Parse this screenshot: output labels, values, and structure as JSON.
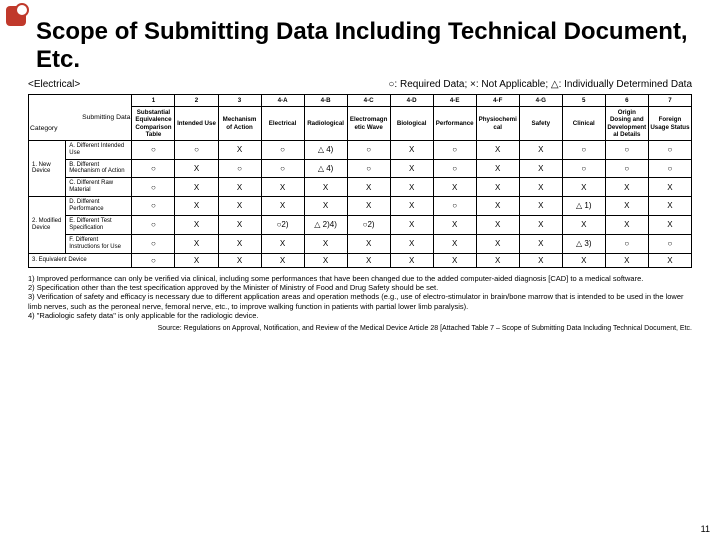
{
  "title": "Scope of Submitting Data Including Technical Document, Etc.",
  "subtitle_left": "<Electrical>",
  "legend": "○: Required Data; ×: Not Applicable; △: Individually Determined Data",
  "header_top": [
    "1",
    "2",
    "3",
    "4-A",
    "4-B",
    "4-C",
    "4-D",
    "4-E",
    "4-F",
    "4-G",
    "5",
    "6",
    "7"
  ],
  "header_sub_label": "Submitting Data",
  "category_label": "Category",
  "header_bottom": [
    "Substantial Equivalence Comparison Table",
    "Intended Use",
    "Mechanism of Action",
    "Electrical",
    "Radiological",
    "Electromagnetic Wave",
    "Biological",
    "Performance",
    "Physiochemical",
    "Safety",
    "Clinical",
    "Origin Dosing and Developmental Details",
    "Foreign Usage Status"
  ],
  "row_groups": [
    {
      "label": "1. New Device",
      "rows": [
        {
          "label": "A. Different Intended Use",
          "cells": [
            "○",
            "○",
            "X",
            "○",
            "△ 4)",
            "○",
            "X",
            "○",
            "X",
            "X",
            "○",
            "○",
            "○"
          ]
        },
        {
          "label": "B. Different Mechanism of Action",
          "cells": [
            "○",
            "X",
            "○",
            "○",
            "△ 4)",
            "○",
            "X",
            "○",
            "X",
            "X",
            "○",
            "○",
            "○"
          ]
        },
        {
          "label": "C. Different Raw Material",
          "cells": [
            "○",
            "X",
            "X",
            "X",
            "X",
            "X",
            "X",
            "X",
            "X",
            "X",
            "X",
            "X",
            "X"
          ]
        }
      ]
    },
    {
      "label": "2. Modified Device",
      "rows": [
        {
          "label": "D. Different Performance",
          "cells": [
            "○",
            "X",
            "X",
            "X",
            "X",
            "X",
            "X",
            "○",
            "X",
            "X",
            "△ 1)",
            "X",
            "X"
          ]
        },
        {
          "label": "E. Different Test Specification",
          "cells": [
            "○",
            "X",
            "X",
            "○2)",
            "△ 2)4)",
            "○2)",
            "X",
            "X",
            "X",
            "X",
            "X",
            "X",
            "X"
          ]
        },
        {
          "label": "F. Different Instructions for Use",
          "cells": [
            "○",
            "X",
            "X",
            "X",
            "X",
            "X",
            "X",
            "X",
            "X",
            "X",
            "△ 3)",
            "○",
            "○"
          ]
        }
      ]
    }
  ],
  "row_equiv": {
    "label": "3. Equivalent Device",
    "cells": [
      "○",
      "X",
      "X",
      "X",
      "X",
      "X",
      "X",
      "X",
      "X",
      "X",
      "X",
      "X",
      "X"
    ]
  },
  "footnotes": [
    "1) Improved performance can only be verified via clinical, including some performances that have been changed due to the added computer-aided diagnosis [CAD] to a medical software.",
    "2) Specification other than the test specification approved by the Minister of Ministry of Food and Drug Safety should be set.",
    "3) Verification of safety and efficacy is necessary due to different application areas and operation methods (e.g., use of electro-stimulator in brain/bone marrow that is intended to be used in the lower limb nerves, such as the peroneal nerve, femoral nerve, etc., to improve walking function in patients with partial lower limb paralysis).",
    "4) \"Radiologic safety data\" is only applicable for the radiologic device."
  ],
  "source": "Source: Regulations on Approval, Notification, and Review of the Medical Device Article 28 [Attached Table 7 – Scope of Submitting Data Including Technical Document, Etc.",
  "page": "11"
}
